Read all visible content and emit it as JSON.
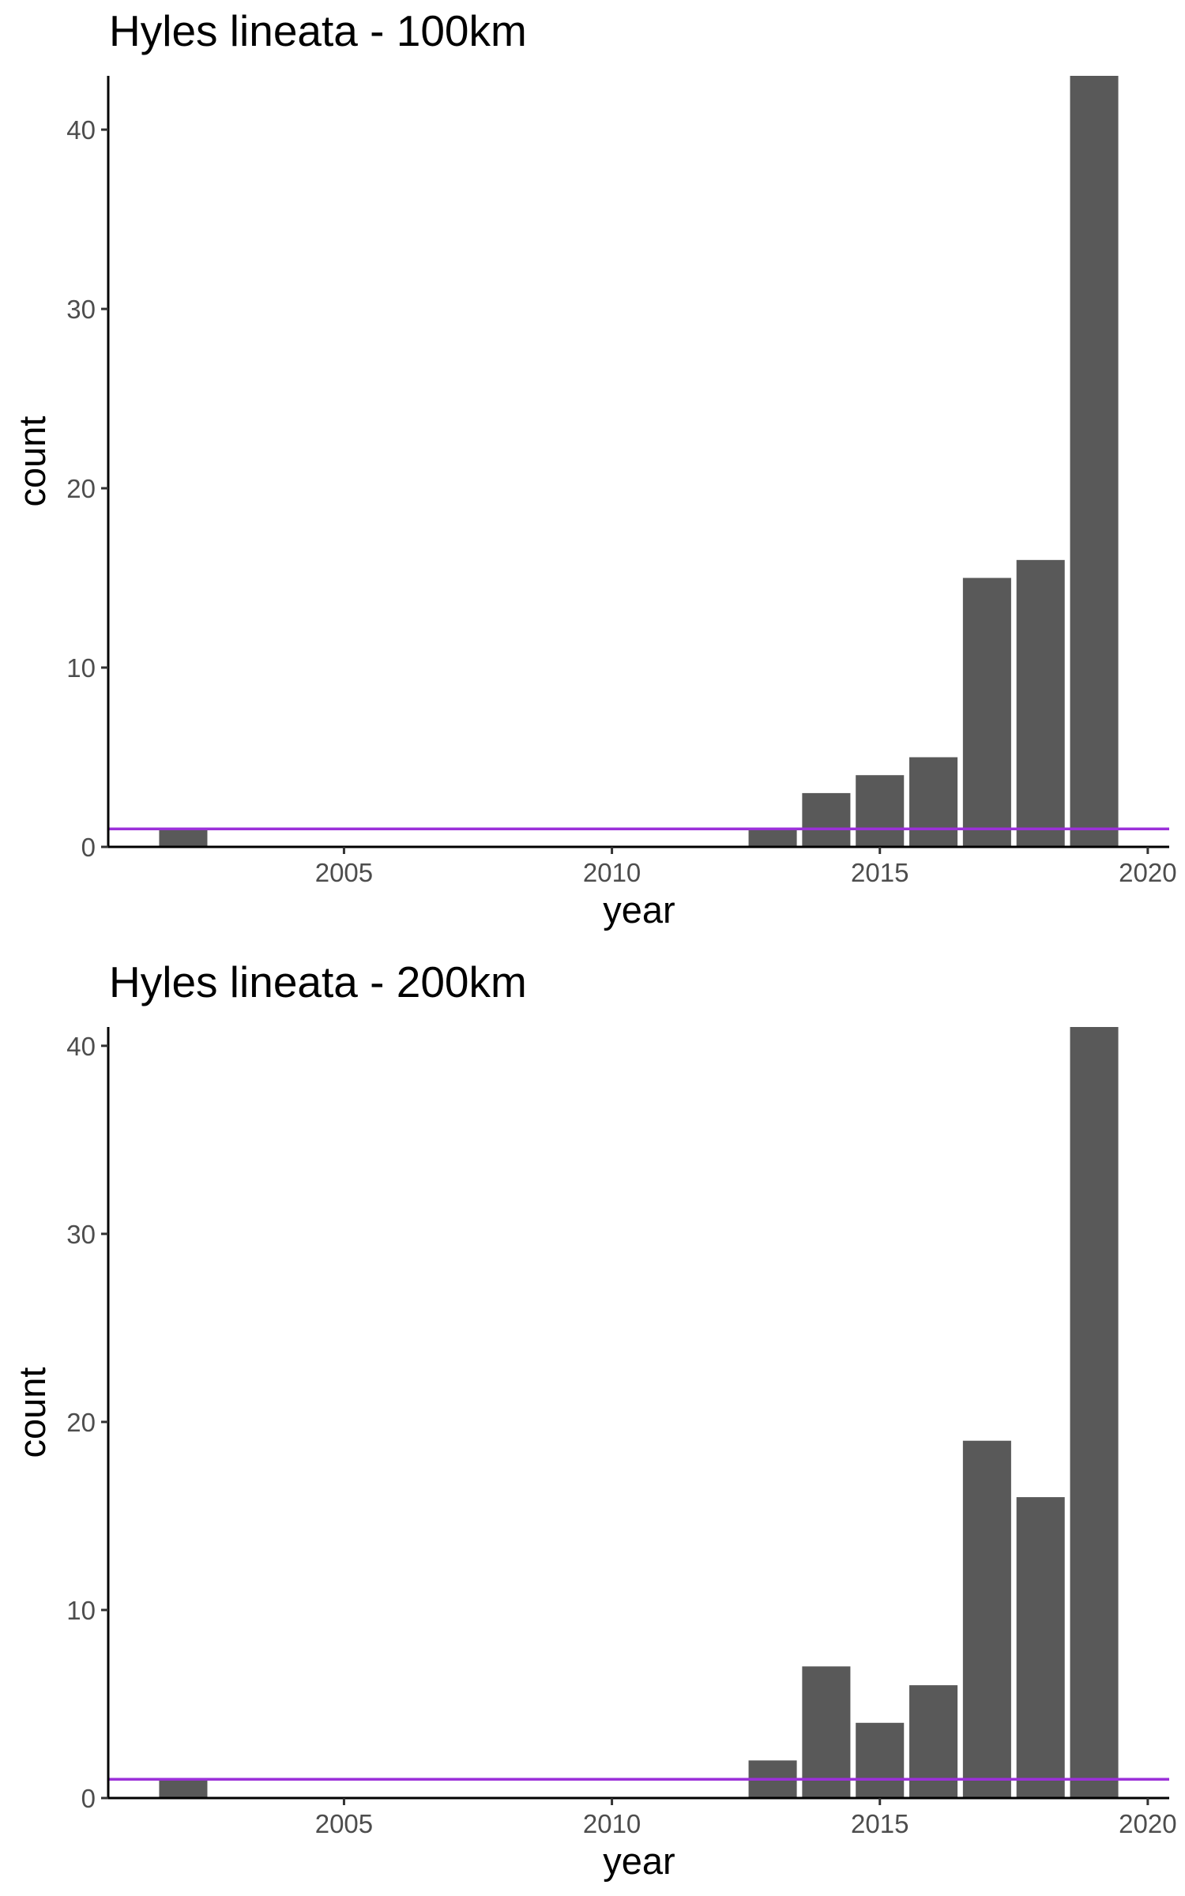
{
  "chart_data": [
    {
      "type": "bar",
      "title": "Hyles lineata - 100km",
      "xlabel": "year",
      "ylabel": "count",
      "xlim": [
        2000.6,
        2020.4
      ],
      "ylim": [
        0,
        43
      ],
      "xticks": [
        2005,
        2010,
        2015,
        2020
      ],
      "yticks": [
        0,
        10,
        20,
        30,
        40
      ],
      "x": [
        2002,
        2013,
        2014,
        2015,
        2016,
        2017,
        2018,
        2019
      ],
      "values": [
        1,
        1,
        3,
        4,
        5,
        15,
        16,
        43
      ],
      "bar_color": "#595959",
      "reference_line": {
        "y": 1,
        "color": "#9b30d9"
      },
      "grid": false
    },
    {
      "type": "bar",
      "title": "Hyles lineata - 200km",
      "xlabel": "year",
      "ylabel": "count",
      "xlim": [
        2000.6,
        2020.4
      ],
      "ylim": [
        0,
        41
      ],
      "xticks": [
        2005,
        2010,
        2015,
        2020
      ],
      "yticks": [
        0,
        10,
        20,
        30,
        40
      ],
      "x": [
        2002,
        2013,
        2014,
        2015,
        2016,
        2017,
        2018,
        2019
      ],
      "values": [
        1,
        2,
        7,
        4,
        6,
        19,
        16,
        41
      ],
      "bar_color": "#595959",
      "reference_line": {
        "y": 1,
        "color": "#9b30d9"
      },
      "grid": false
    }
  ]
}
